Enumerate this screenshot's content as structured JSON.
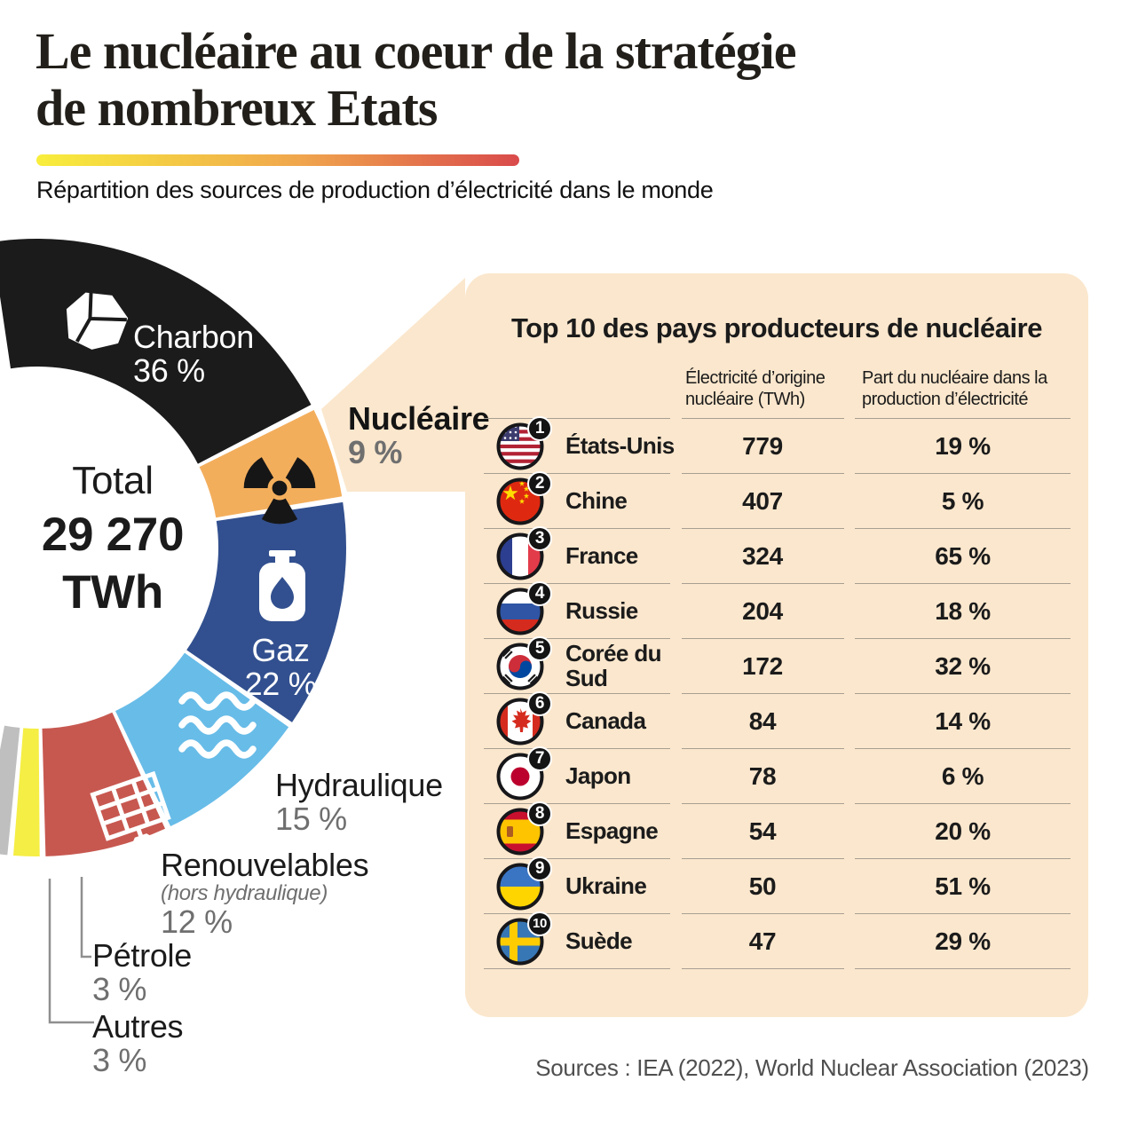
{
  "header": {
    "title_line1": "Le nucléaire au coeur de la stratégie",
    "title_line2": "de nombreux Etats",
    "subtitle": "Répartition des sources de production d’électricité dans le monde",
    "accent_gradient": [
      "#f8ee3c",
      "#f0a54d",
      "#d94a4b"
    ]
  },
  "chart_data": [
    {
      "type": "pie",
      "variant": "donut-arc",
      "title": "Répartition des sources de production d’électricité dans le monde",
      "center": {
        "label": "Total",
        "value": "29 270",
        "unit": "TWh"
      },
      "unit": "%",
      "start_angle_deg": -9,
      "deg_per_percent": 2,
      "categories": [
        "Charbon",
        "Nucléaire",
        "Gaz",
        "Hydraulique",
        "Renouvelables",
        "Pétrole",
        "Autres"
      ],
      "values": [
        36,
        9,
        22,
        15,
        12,
        3,
        3
      ],
      "labels_display": [
        "36 %",
        "9 %",
        "22 %",
        "15 %",
        "12 %",
        "3 %",
        "3 %"
      ],
      "note_renouvelables": "(hors hydraulique)",
      "colors": [
        "#1b1b1b",
        "#f3ae5c",
        "#32508f",
        "#68bce8",
        "#c75850",
        "#f5ee44",
        "#bfbfbf"
      ],
      "icons": [
        "coal-icon",
        "radiation-icon",
        "gas-cylinder-icon",
        "waves-icon",
        "solar-panel-icon",
        null,
        null
      ],
      "legend_position": "on-chart"
    },
    {
      "type": "table",
      "title": "Top 10 des pays producteurs de nucléaire",
      "columns": [
        "Électricité d’origine nucléaire (TWh)",
        "Part du nucléaire dans la production d’électricité"
      ],
      "rows": [
        {
          "rank": "1",
          "country": "États‑Unis",
          "flag": "us",
          "twh": "779",
          "share": "19 %"
        },
        {
          "rank": "2",
          "country": "Chine",
          "flag": "cn",
          "twh": "407",
          "share": "5 %"
        },
        {
          "rank": "3",
          "country": "France",
          "flag": "fr",
          "twh": "324",
          "share": "65 %"
        },
        {
          "rank": "4",
          "country": "Russie",
          "flag": "ru",
          "twh": "204",
          "share": "18 %"
        },
        {
          "rank": "5",
          "country": "Corée du Sud",
          "flag": "kr",
          "twh": "172",
          "share": "32 %"
        },
        {
          "rank": "6",
          "country": "Canada",
          "flag": "ca",
          "twh": "84",
          "share": "14 %"
        },
        {
          "rank": "7",
          "country": "Japon",
          "flag": "jp",
          "twh": "78",
          "share": "6 %"
        },
        {
          "rank": "8",
          "country": "Espagne",
          "flag": "es",
          "twh": "54",
          "share": "20 %"
        },
        {
          "rank": "9",
          "country": "Ukraine",
          "flag": "ua",
          "twh": "50",
          "share": "51 %"
        },
        {
          "rank": "10",
          "country": "Suède",
          "flag": "se",
          "twh": "47",
          "share": "29 %"
        }
      ]
    }
  ],
  "footer": {
    "sources": "Sources : IEA (2022), World Nuclear Association (2023)"
  },
  "panel_color": "#fbe7cd"
}
